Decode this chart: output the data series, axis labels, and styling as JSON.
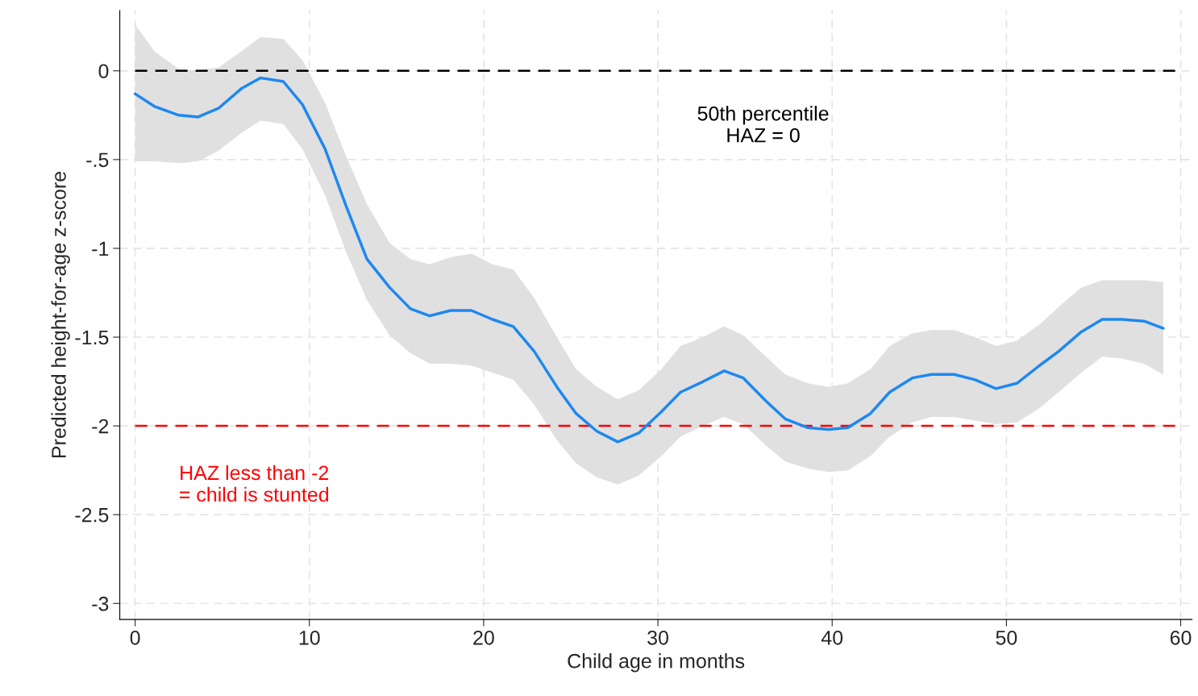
{
  "chart_data": {
    "type": "line",
    "xlabel": "Child age in months",
    "ylabel": "Predicted height-for-age z-score",
    "xlim": [
      -0.88,
      60.65
    ],
    "ylim": [
      -3.09,
      0.34
    ],
    "xticks": [
      0,
      10,
      20,
      30,
      40,
      50,
      60
    ],
    "yticks": [
      0,
      {
        "value": -0.5,
        "label": "-.5"
      },
      -1,
      {
        "value": -1.5,
        "label": "-1.5"
      },
      -2,
      {
        "value": -2.5,
        "label": "-2.5"
      },
      -3
    ],
    "grid": true,
    "line_style": "solid",
    "marker": "none",
    "x": [
      0,
      1.1,
      2.5,
      3.6,
      4.8,
      6.1,
      7.2,
      8.5,
      9.6,
      10.9,
      12.1,
      13.3,
      14.6,
      15.8,
      16.9,
      18.1,
      19.3,
      20.5,
      21.7,
      22.9,
      24.2,
      25.3,
      26.5,
      27.7,
      28.9,
      30.2,
      31.3,
      32.6,
      33.8,
      34.9,
      36.2,
      37.3,
      38.6,
      39.8,
      40.9,
      42.2,
      43.3,
      44.6,
      45.7,
      47.0,
      48.2,
      49.4,
      50.6,
      51.9,
      53.0,
      54.3,
      55.5,
      56.6,
      57.9,
      59.0
    ],
    "series": [
      {
        "color": "#1e88f0",
        "values": [
          -0.13,
          -0.2,
          -0.25,
          -0.26,
          -0.21,
          -0.1,
          -0.04,
          -0.06,
          -0.19,
          -0.44,
          -0.76,
          -1.06,
          -1.22,
          -1.34,
          -1.38,
          -1.35,
          -1.35,
          -1.4,
          -1.44,
          -1.58,
          -1.78,
          -1.93,
          -2.03,
          -2.09,
          -2.04,
          -1.92,
          -1.81,
          -1.75,
          -1.69,
          -1.73,
          -1.86,
          -1.96,
          -2.01,
          -2.02,
          -2.01,
          -1.93,
          -1.81,
          -1.73,
          -1.71,
          -1.71,
          -1.74,
          -1.79,
          -1.76,
          -1.66,
          -1.58,
          -1.47,
          -1.4,
          -1.4,
          -1.41,
          -1.45
        ],
        "upper": [
          0.26,
          0.11,
          0.01,
          0.0,
          0.02,
          0.11,
          0.19,
          0.18,
          0.06,
          -0.18,
          -0.48,
          -0.75,
          -0.97,
          -1.06,
          -1.09,
          -1.05,
          -1.03,
          -1.09,
          -1.12,
          -1.28,
          -1.5,
          -1.68,
          -1.78,
          -1.85,
          -1.8,
          -1.68,
          -1.55,
          -1.5,
          -1.44,
          -1.49,
          -1.61,
          -1.71,
          -1.76,
          -1.78,
          -1.76,
          -1.68,
          -1.55,
          -1.48,
          -1.46,
          -1.46,
          -1.5,
          -1.55,
          -1.52,
          -1.43,
          -1.33,
          -1.22,
          -1.18,
          -1.18,
          -1.18,
          -1.19
        ],
        "lower": [
          -0.51,
          -0.51,
          -0.52,
          -0.51,
          -0.45,
          -0.35,
          -0.28,
          -0.3,
          -0.44,
          -0.7,
          -1.02,
          -1.29,
          -1.49,
          -1.59,
          -1.65,
          -1.65,
          -1.66,
          -1.7,
          -1.74,
          -1.88,
          -2.08,
          -2.21,
          -2.29,
          -2.33,
          -2.28,
          -2.17,
          -2.06,
          -2.0,
          -1.95,
          -1.99,
          -2.11,
          -2.2,
          -2.24,
          -2.26,
          -2.25,
          -2.17,
          -2.06,
          -1.98,
          -1.95,
          -1.95,
          -1.97,
          -1.99,
          -1.98,
          -1.9,
          -1.81,
          -1.7,
          -1.61,
          -1.62,
          -1.65,
          -1.71
        ]
      }
    ],
    "ref_lines": [
      {
        "axis": "y",
        "value": 0,
        "label": "50th percentile\nHAZ = 0",
        "color": "#000000",
        "line_style": "dashed"
      },
      {
        "axis": "y",
        "value": -2,
        "label": "HAZ less than -2\n= child is stunted",
        "color": "#ff0000",
        "line_style": "dashed"
      }
    ]
  }
}
